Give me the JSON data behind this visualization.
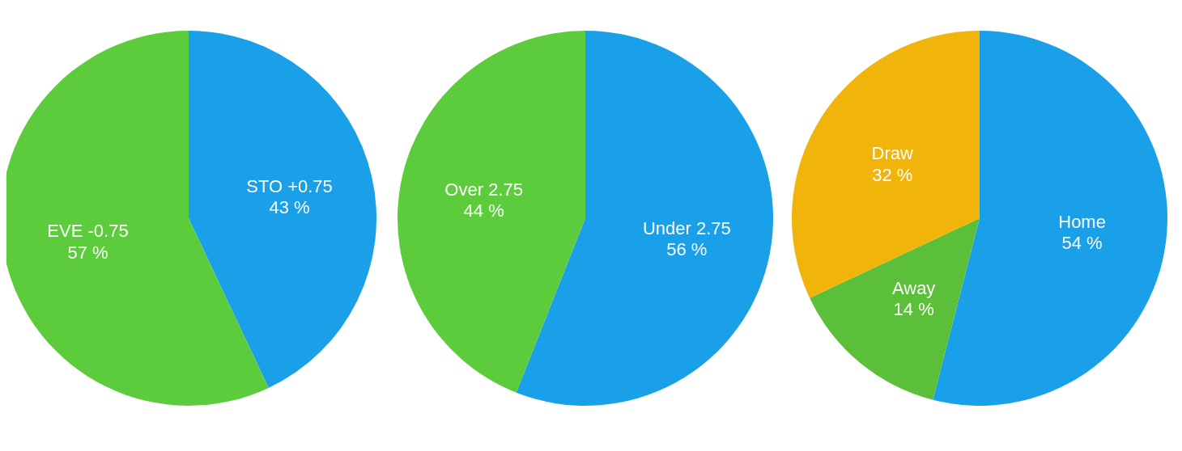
{
  "chart_data": [
    {
      "type": "pie",
      "categories": [
        "STO +0.75",
        "EVE -0.75"
      ],
      "values": [
        43,
        57
      ],
      "colors": [
        "#1aa0e8",
        "#5ccc3c"
      ],
      "value_labels": [
        "43 %",
        "57 %"
      ]
    },
    {
      "type": "pie",
      "categories": [
        "Under 2.75",
        "Over 2.75"
      ],
      "values": [
        56,
        44
      ],
      "colors": [
        "#1aa0e8",
        "#5ccc3c"
      ],
      "value_labels": [
        "56 %",
        "44 %"
      ]
    },
    {
      "type": "pie",
      "categories": [
        "Home",
        "Away",
        "Draw"
      ],
      "values": [
        54,
        14,
        32
      ],
      "colors": [
        "#1aa0e8",
        "#5cbf3a",
        "#f0b40a"
      ],
      "value_labels": [
        "54 %",
        "14 %",
        "32 %"
      ]
    }
  ]
}
